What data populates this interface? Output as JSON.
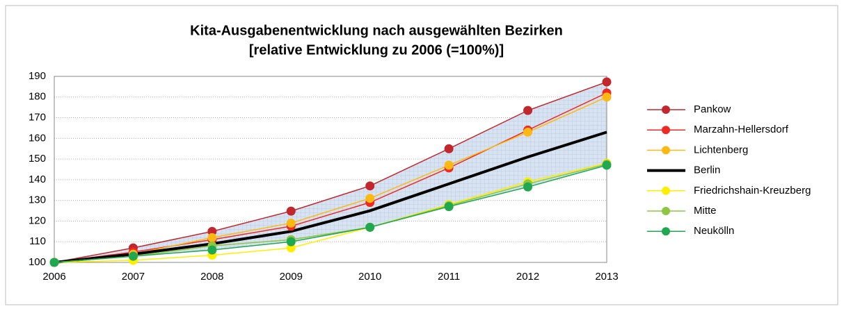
{
  "chart_data": {
    "type": "line",
    "title": [
      "Kita-Ausgabenentwicklung nach ausgewählten Bezirken",
      "[relative Entwicklung zu 2006 (=100%)]"
    ],
    "categories": [
      "2006",
      "2007",
      "2008",
      "2009",
      "2010",
      "2011",
      "2012",
      "2013"
    ],
    "series": [
      {
        "name": "Pankow",
        "color": "#c1272d",
        "values": [
          100,
          107,
          115,
          124.8,
          137,
          155,
          173.5,
          187.3
        ]
      },
      {
        "name": "Marzahn-Hellersdorf",
        "color": "#ee2a24",
        "values": [
          100,
          105,
          111,
          117.5,
          129,
          145.7,
          164,
          182
        ]
      },
      {
        "name": "Lichtenberg",
        "color": "#fdb913",
        "values": [
          100,
          104,
          112,
          119,
          131,
          147,
          163,
          180
        ]
      },
      {
        "name": "Berlin",
        "color": "#000000",
        "values": [
          100,
          104,
          109,
          115,
          125,
          138,
          151,
          163
        ],
        "marker": false,
        "width": 4
      },
      {
        "name": "Friedrichshain-Kreuzberg",
        "color": "#ffee00",
        "values": [
          100,
          101,
          103.5,
          107,
          117,
          128,
          139,
          148
        ]
      },
      {
        "name": "Mitte",
        "color": "#8dc63f",
        "values": [
          100,
          103,
          108,
          111,
          117,
          127.5,
          138,
          147.5
        ]
      },
      {
        "name": "Neukölln",
        "color": "#1fa84f",
        "values": [
          100,
          103,
          106,
          110,
          117,
          127,
          136.5,
          147
        ]
      }
    ],
    "ylim": [
      100,
      190
    ],
    "yticks": [
      100,
      110,
      120,
      130,
      140,
      150,
      160,
      170,
      180,
      190
    ],
    "grid": true
  }
}
